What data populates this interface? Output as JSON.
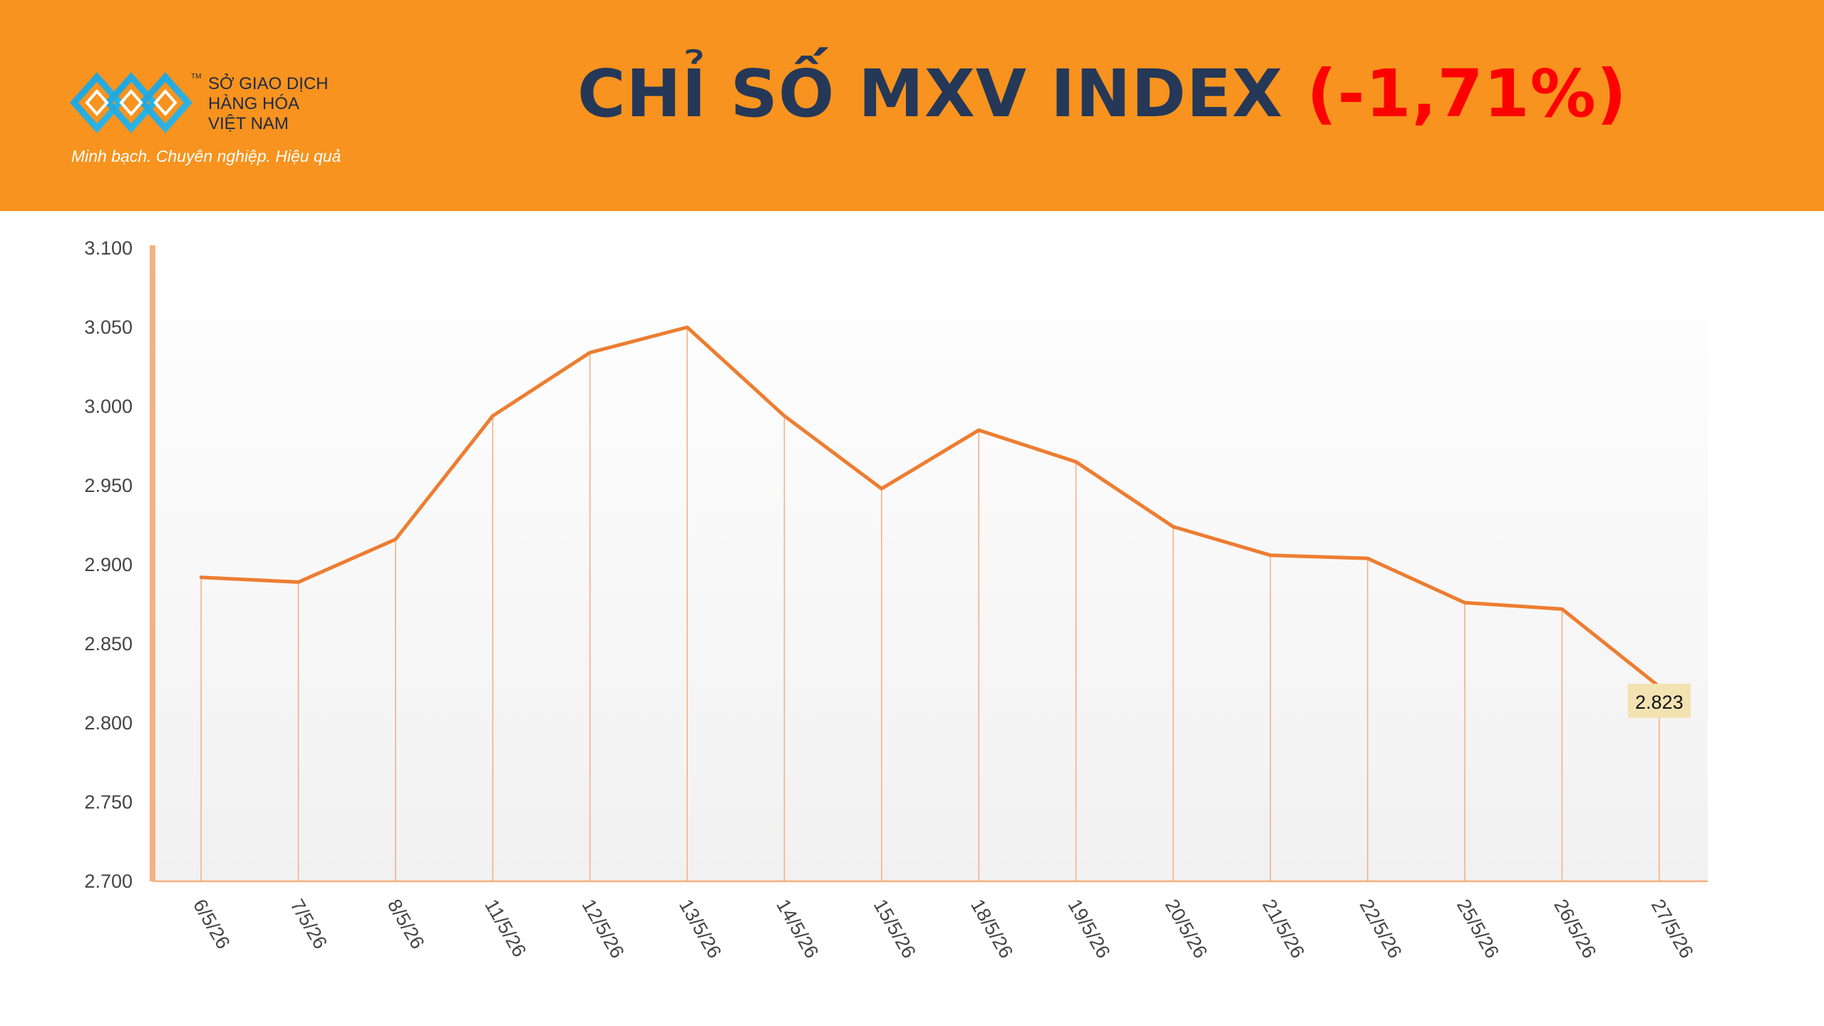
{
  "header": {
    "title_main": "CHỈ SỐ MXV INDEX",
    "title_change": "(-1,71%)",
    "logo": {
      "line1": "SỞ GIAO DỊCH",
      "line2": "HÀNG HÓA",
      "line3": "VIỆT NAM",
      "tm": "TM",
      "slogan": "Minh bạch. Chuyên nghiệp. Hiệu quả"
    }
  },
  "colors": {
    "header_bg": "#f7931e",
    "title": "#253858",
    "change": "#ff0000",
    "line": "#ed7d31",
    "axis": "#f4b183",
    "label_box": "#f3e3b3"
  },
  "chart_data": {
    "type": "line",
    "title": "",
    "xlabel": "",
    "ylabel": "",
    "ylim": [
      2700,
      3100
    ],
    "ytick_labels": [
      "2.700",
      "2.750",
      "2.800",
      "2.850",
      "2.900",
      "2.950",
      "3.000",
      "3.050",
      "3.100"
    ],
    "categories": [
      "6/5/26",
      "7/5/26",
      "8/5/26",
      "11/5/26",
      "12/5/26",
      "13/5/26",
      "14/5/26",
      "15/5/26",
      "18/5/26",
      "19/5/26",
      "20/5/26",
      "21/5/26",
      "22/5/26",
      "25/5/26",
      "26/5/26",
      "27/5/26"
    ],
    "series": [
      {
        "values": [
          2892,
          2889,
          2916,
          2994,
          3034,
          3050,
          2994,
          2948,
          2985,
          2965,
          2924,
          2906,
          2904,
          2876,
          2872,
          2823
        ]
      }
    ],
    "data_labels": [
      {
        "index": 15,
        "text": "2.823"
      }
    ],
    "grid": false,
    "drop_lines": true,
    "legend": "none"
  }
}
